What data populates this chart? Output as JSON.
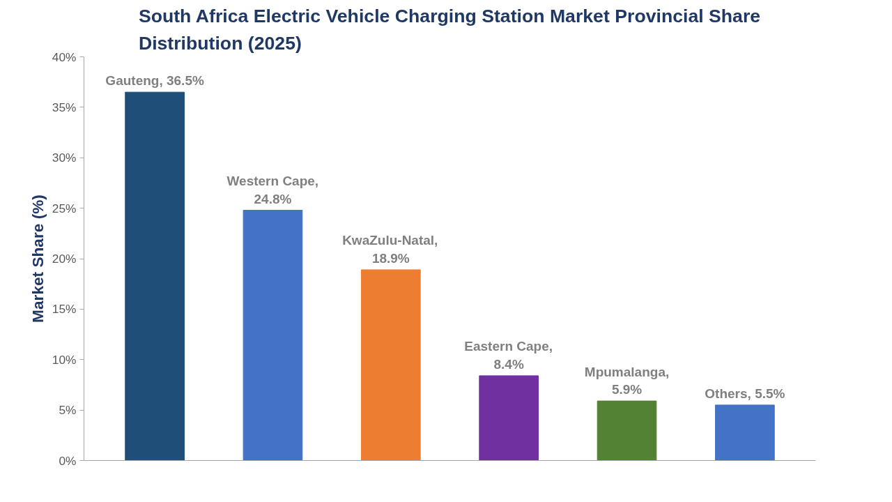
{
  "chart_data": {
    "type": "bar",
    "title": "South Africa Electric Vehicle Charging Station Market Provincial Share\nDistribution (2025)",
    "ylabel": "Market Share (%)",
    "categories": [
      null,
      null,
      null,
      null,
      null,
      null
    ],
    "values": [
      36.5,
      24.8,
      18.9,
      8.4,
      5.9,
      5.5
    ],
    "colors": [
      "#1f4e79",
      "#4472c4",
      "#ed7d31",
      "#7030a0",
      "#548235",
      "#4472c4"
    ],
    "value_labels": [
      "Gauteng, 36.5%",
      "Western Cape,\n24.8%",
      "KwaZulu-Natal,\n18.9%",
      "Eastern Cape,\n8.4%",
      "Mpumalanga,\n5.9%",
      "Others, 5.5%"
    ],
    "ylim": [
      0,
      40
    ],
    "yticks": [
      {
        "value": 0,
        "label": "0%"
      },
      {
        "value": 5,
        "label": "5%"
      },
      {
        "value": 10,
        "label": "10%"
      },
      {
        "value": 15,
        "label": "15%"
      },
      {
        "value": 20,
        "label": "20%"
      },
      {
        "value": 25,
        "label": "25%"
      },
      {
        "value": 30,
        "label": "30%"
      },
      {
        "value": 35,
        "label": "35%"
      },
      {
        "value": 40,
        "label": "40%"
      }
    ],
    "tick_labels": "y",
    "grid": false
  }
}
